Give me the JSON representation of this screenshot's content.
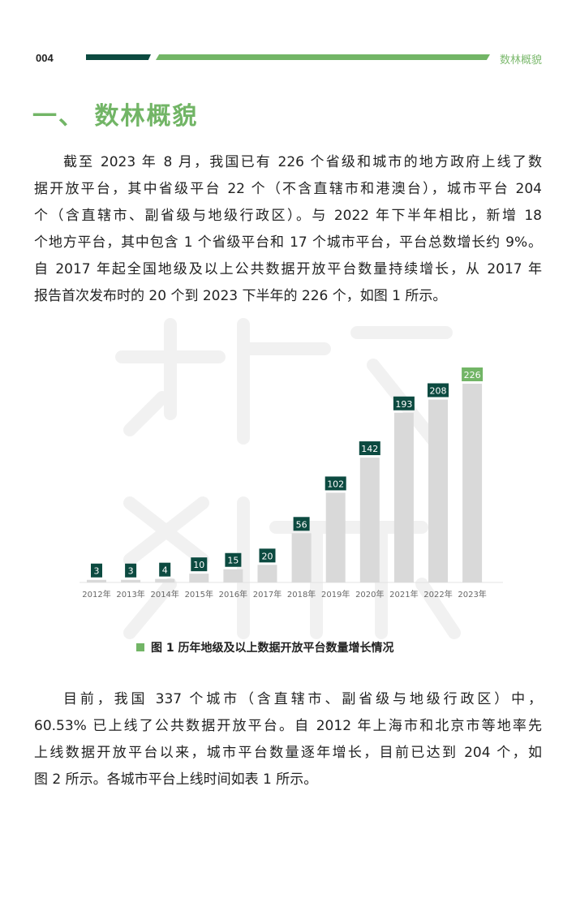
{
  "header": {
    "page_number": "004",
    "running_title": "数林概貌",
    "colors": {
      "dark": "#0c4a40",
      "accent": "#72b566"
    }
  },
  "section_title": "一、 数林概貌",
  "paragraph1": [
    "截至 2023 年 8 月，我国已有 226 个省级和城市的地方政府上线了数",
    "据开放平台，其中省级平台 22 个（不含直辖市和港澳台），城市平台 204",
    "个（含直辖市、副省级与地级行政区）。与 2022 年下半年相比，新增 18",
    "个地方平台，其中包含 1 个省级平台和 17 个城市平台，平台总数增长约 9%。",
    "自 2017 年起全国地级及以上公共数据开放平台数量持续增长，从 2017 年",
    "报告首次发布时的 20 个到 2023 下半年的 226 个，如图 1 所示。"
  ],
  "figure_caption": "图 1  历年地级及以上数据开放平台数量增长情况",
  "chart_data": {
    "type": "bar",
    "categories": [
      "2012年",
      "2013年",
      "2014年",
      "2015年",
      "2016年",
      "2017年",
      "2018年",
      "2019年",
      "2020年",
      "2021年",
      "2022年",
      "2023年"
    ],
    "values": [
      3,
      3,
      4,
      10,
      15,
      20,
      56,
      102,
      142,
      193,
      208,
      226
    ],
    "title": "",
    "xlabel": "",
    "ylabel": "",
    "ylim": [
      0,
      226
    ],
    "grid": false,
    "colors": {
      "bar": "#d9d9d9",
      "label": "#0c4a40",
      "highlight_label": "#72b566"
    }
  },
  "paragraph2": [
    "目前，我国 337 个城市（含直辖市、副省级与地级行政区）中，",
    "60.53% 已上线了公共数据开放平台。自 2012 年上海市和北京市等地率先",
    "上线数据开放平台以来，城市平台数量逐年增长，目前已达到 204 个，如",
    "图 2 所示。各城市平台上线时间如表 1 所示。"
  ]
}
